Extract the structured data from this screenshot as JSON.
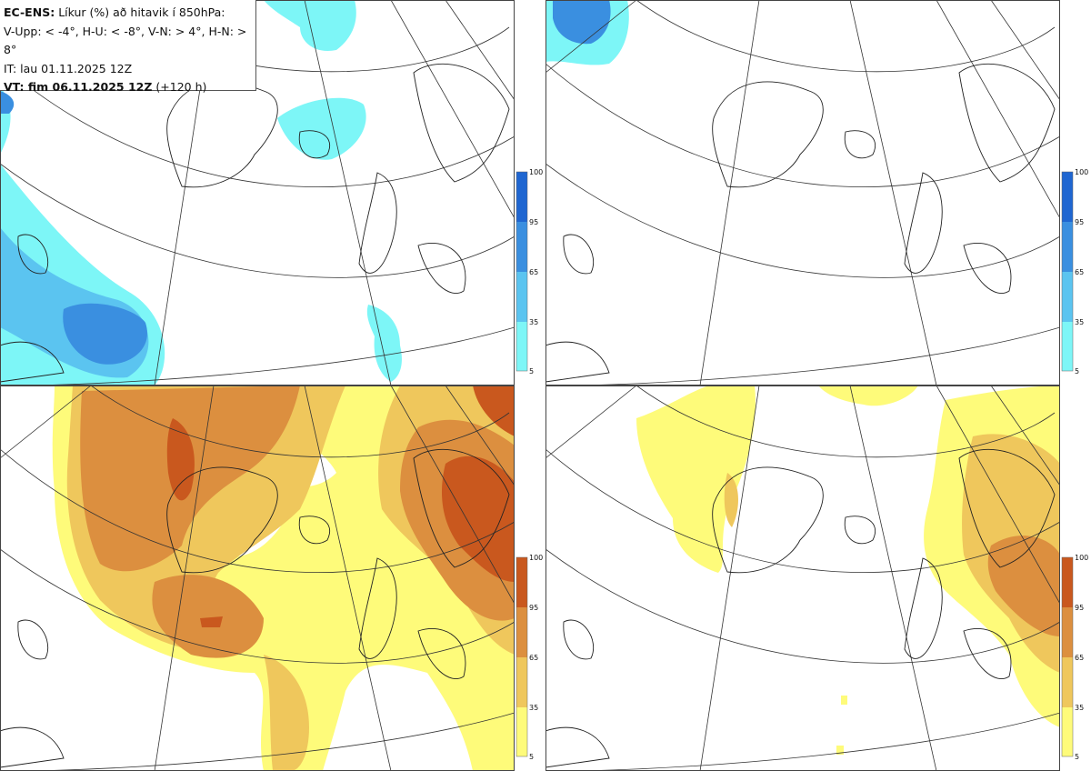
{
  "header": {
    "model": "EC-ENS:",
    "description": "Líkur (%) að hitavik í 850hPa:",
    "thresholds": "V-Upp: < -4°, H-U: < -8°, V-N: > 4°, H-N: > 8°",
    "init_time": "IT: lau 01.11.2025 12Z",
    "valid_label": "VT: fim 06.11.2025 12Z",
    "lead_time": "(+120 h)"
  },
  "panels": [
    {
      "id": "V-Upp",
      "palette": "cold"
    },
    {
      "id": "H-U",
      "palette": "cold"
    },
    {
      "id": "V-N",
      "palette": "warm"
    },
    {
      "id": "H-N",
      "palette": "warm"
    }
  ],
  "colorbar": {
    "ticks": [
      "100",
      "95",
      "65",
      "35",
      "5"
    ],
    "cold_colors": [
      "#1f66d1",
      "#3a8fe0",
      "#5bc4f0",
      "#7df6f7"
    ],
    "warm_colors": [
      "#c9581e",
      "#dc8f3f",
      "#efc75c",
      "#fefb7a"
    ]
  },
  "colors": {
    "grid_line": "#333333",
    "coast_line": "#222222",
    "frame": "#444444"
  }
}
